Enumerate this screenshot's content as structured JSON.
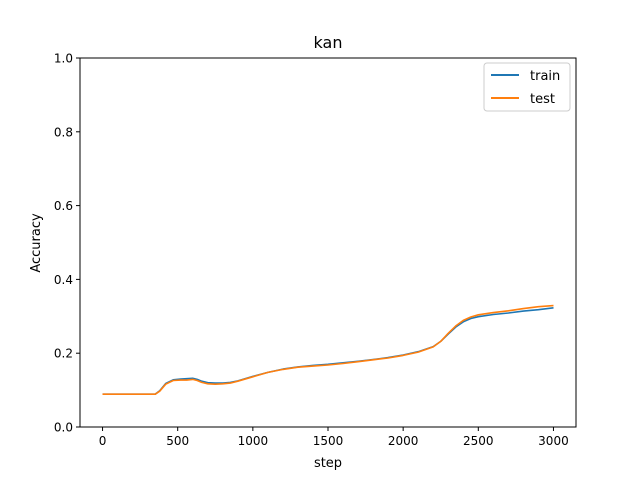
{
  "chart_data": {
    "type": "line",
    "title": "kan",
    "xlabel": "step",
    "ylabel": "Accuracy",
    "xlim": [
      -150,
      3150
    ],
    "ylim": [
      0.0,
      1.0
    ],
    "xticks": [
      0,
      500,
      1000,
      1500,
      2000,
      2500,
      3000
    ],
    "yticks": [
      0.0,
      0.2,
      0.4,
      0.6,
      0.8,
      1.0
    ],
    "xtick_labels": [
      "0",
      "500",
      "1000",
      "1500",
      "2000",
      "2500",
      "3000"
    ],
    "ytick_labels": [
      "0.0",
      "0.2",
      "0.4",
      "0.6",
      "0.8",
      "1.0"
    ],
    "grid": false,
    "legend_position": "upper right",
    "x": [
      0,
      100,
      200,
      300,
      350,
      380,
      420,
      470,
      520,
      560,
      600,
      630,
      660,
      700,
      750,
      800,
      850,
      900,
      1000,
      1100,
      1200,
      1300,
      1400,
      1500,
      1600,
      1700,
      1800,
      1900,
      2000,
      2100,
      2200,
      2250,
      2300,
      2350,
      2400,
      2450,
      2500,
      2600,
      2700,
      2800,
      2900,
      3000
    ],
    "series": [
      {
        "name": "train",
        "color": "#1f77b4",
        "values": [
          0.089,
          0.089,
          0.089,
          0.089,
          0.089,
          0.098,
          0.118,
          0.128,
          0.13,
          0.131,
          0.132,
          0.129,
          0.124,
          0.12,
          0.119,
          0.119,
          0.121,
          0.125,
          0.137,
          0.148,
          0.157,
          0.163,
          0.167,
          0.17,
          0.174,
          0.178,
          0.183,
          0.188,
          0.195,
          0.204,
          0.218,
          0.232,
          0.252,
          0.271,
          0.285,
          0.294,
          0.299,
          0.305,
          0.309,
          0.314,
          0.318,
          0.323
        ]
      },
      {
        "name": "test",
        "color": "#ff7f0e",
        "values": [
          0.089,
          0.089,
          0.089,
          0.089,
          0.089,
          0.097,
          0.116,
          0.126,
          0.127,
          0.127,
          0.129,
          0.126,
          0.121,
          0.117,
          0.116,
          0.117,
          0.119,
          0.124,
          0.136,
          0.148,
          0.156,
          0.162,
          0.165,
          0.168,
          0.172,
          0.177,
          0.182,
          0.187,
          0.194,
          0.203,
          0.217,
          0.232,
          0.254,
          0.274,
          0.289,
          0.298,
          0.304,
          0.31,
          0.315,
          0.321,
          0.326,
          0.329
        ]
      }
    ]
  }
}
